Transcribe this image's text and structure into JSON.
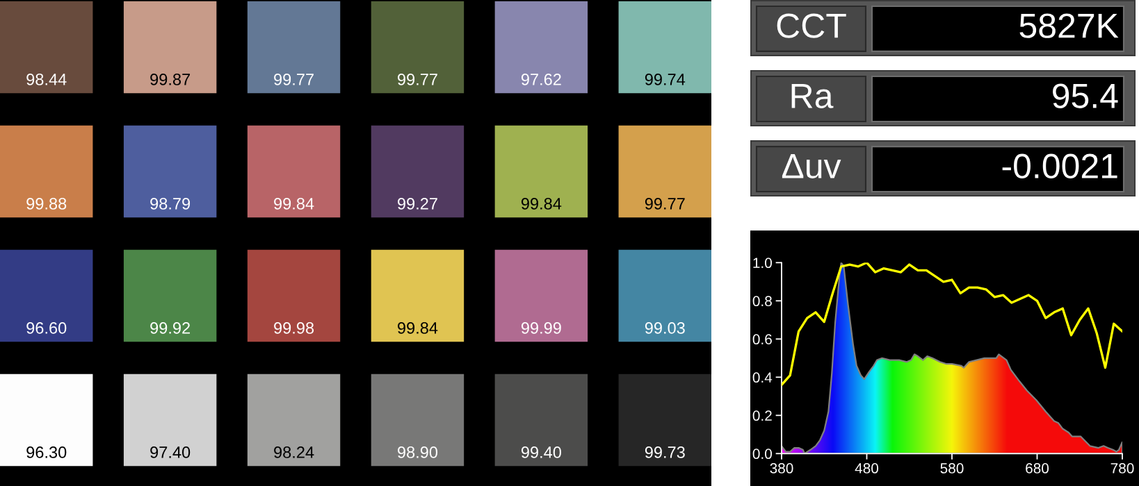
{
  "chart_data": [
    {
      "type": "heatmap",
      "categories": [
        null,
        null,
        null,
        null,
        null,
        null
      ],
      "y_categories": [
        null,
        null,
        null,
        null
      ],
      "cells": [
        [
          98.44,
          99.87,
          99.77,
          99.77,
          97.62,
          99.74
        ],
        [
          99.88,
          98.79,
          99.84,
          99.27,
          99.84,
          99.77
        ],
        [
          96.6,
          99.92,
          99.98,
          99.84,
          99.99,
          99.03
        ],
        [
          96.3,
          97.4,
          98.24,
          98.9,
          99.4,
          99.73
        ]
      ],
      "cell_labels": [
        [
          "98.44",
          "99.87",
          "99.77",
          "99.77",
          "97.62",
          "99.74"
        ],
        [
          "99.88",
          "98.79",
          "99.84",
          "99.27",
          "99.84",
          "99.77"
        ],
        [
          "96.60",
          "99.92",
          "99.98",
          "99.84",
          "99.99",
          "99.03"
        ],
        [
          "96.30",
          "97.40",
          "98.24",
          "98.90",
          "99.40",
          "99.73"
        ]
      ],
      "colors": [
        "#684b3d",
        "#c79b89",
        "#637895",
        "#526139",
        "#8886ae",
        "#80b8ad",
        "#c97e4a",
        "#4e5e9e",
        "#b86467",
        "#513a60",
        "#9fb150",
        "#d4a04c",
        "#333c85",
        "#4c8648",
        "#a4463f",
        "#e0c452",
        "#b06b91",
        "#4486a3",
        "#fdfdfd",
        "#d1d1d1",
        "#a1a19f",
        "#787877",
        "#4c4c4b",
        "#262626"
      ]
    },
    {
      "type": "other",
      "categories": [
        "CCT",
        "Ra",
        "Δuv"
      ],
      "annotations": [
        "5827K",
        "95.4",
        "-0.0021"
      ]
    },
    {
      "type": "line",
      "xlim": [
        380,
        780
      ],
      "xticks": [
        380,
        480,
        580,
        680,
        780
      ],
      "ylim": [
        0,
        1
      ],
      "yticks": [
        {
          "value": 0,
          "label": "0.0"
        },
        0.2,
        0.4,
        0.6,
        0.8,
        {
          "value": 1,
          "label": "1.0"
        }
      ],
      "series": [
        {
          "type": "area",
          "color": "#808080",
          "x": [
            380,
            385,
            390,
            395,
            400,
            405,
            407,
            414,
            420,
            425,
            430,
            435,
            439,
            443,
            448,
            450,
            453,
            458,
            464,
            468,
            473,
            477,
            483,
            488,
            492,
            498,
            507,
            518,
            527,
            532,
            536,
            540,
            546,
            551,
            557,
            566,
            573,
            580,
            591,
            594,
            600,
            609,
            618,
            628,
            632,
            635,
            644,
            649,
            659,
            668,
            679,
            690,
            700,
            705,
            710,
            717,
            721,
            725,
            731,
            742,
            752,
            758,
            763,
            769,
            773,
            776,
            780
          ],
          "values": [
            0.04,
            0.01,
            0.01,
            0.03,
            0.03,
            0.02,
            0.0,
            0.02,
            0.04,
            0.07,
            0.12,
            0.22,
            0.42,
            0.69,
            0.93,
            1.0,
            0.98,
            0.78,
            0.57,
            0.46,
            0.41,
            0.39,
            0.43,
            0.46,
            0.49,
            0.5,
            0.49,
            0.49,
            0.48,
            0.49,
            0.52,
            0.51,
            0.49,
            0.51,
            0.5,
            0.48,
            0.47,
            0.47,
            0.46,
            0.45,
            0.48,
            0.49,
            0.5,
            0.5,
            0.5,
            0.52,
            0.49,
            0.44,
            0.38,
            0.33,
            0.28,
            0.22,
            0.17,
            0.16,
            0.13,
            0.11,
            0.09,
            0.09,
            0.09,
            0.04,
            0.03,
            0.04,
            0.03,
            0.02,
            0.01,
            0.02,
            0.06
          ]
        },
        {
          "type": "line",
          "color": "#ffff00",
          "x": [
            380,
            390,
            400,
            410,
            420,
            430,
            440,
            450,
            460,
            470,
            480,
            490,
            500,
            510,
            520,
            530,
            540,
            550,
            560,
            570,
            580,
            590,
            600,
            610,
            620,
            630,
            640,
            650,
            660,
            670,
            680,
            690,
            700,
            710,
            720,
            730,
            740,
            750,
            760,
            770,
            780
          ],
          "values": [
            0.36,
            0.41,
            0.64,
            0.71,
            0.74,
            0.69,
            0.84,
            0.98,
            0.99,
            0.98,
            1.0,
            0.95,
            0.97,
            0.96,
            0.95,
            0.99,
            0.96,
            0.96,
            0.93,
            0.9,
            0.91,
            0.84,
            0.87,
            0.87,
            0.86,
            0.82,
            0.83,
            0.79,
            0.81,
            0.83,
            0.8,
            0.71,
            0.74,
            0.76,
            0.62,
            0.7,
            0.76,
            0.63,
            0.45,
            0.68,
            0.64
          ]
        }
      ]
    }
  ]
}
